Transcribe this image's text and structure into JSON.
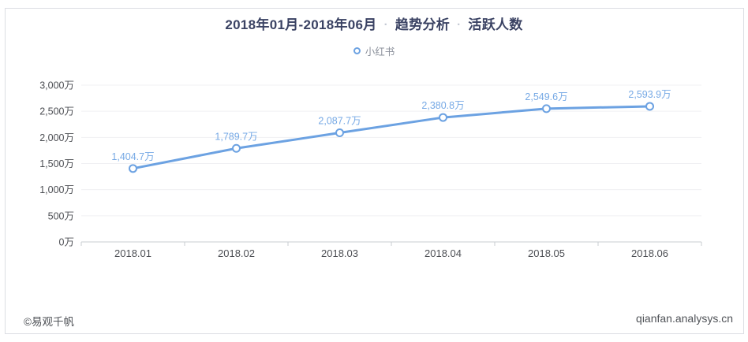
{
  "page": {
    "title": {
      "segments": [
        "2018年01月-2018年06月",
        "趋势分析",
        "活跃人数"
      ],
      "separator": "·"
    },
    "legend": {
      "label": "小红书"
    },
    "footer": {
      "left": "©易观千帆",
      "right": "qianfan.analysys.cn"
    }
  },
  "chart_data": {
    "type": "line",
    "title": "2018年01月-2018年06月 · 趋势分析 · 活跃人数",
    "series": [
      {
        "name": "小红书",
        "values": [
          1404.7,
          1789.7,
          2087.7,
          2380.8,
          2549.6,
          2593.9
        ],
        "point_labels": [
          "1,404.7万",
          "1,789.7万",
          "2,087.7万",
          "2,380.8万",
          "2,549.6万",
          "2,593.9万"
        ]
      }
    ],
    "categories": [
      "2018.01",
      "2018.02",
      "2018.03",
      "2018.04",
      "2018.05",
      "2018.06"
    ],
    "xlabel": "",
    "ylabel": "",
    "ylim": [
      0,
      3000
    ],
    "y_ticks": [
      {
        "value": 0,
        "label": "0万"
      },
      {
        "value": 500,
        "label": "500万"
      },
      {
        "value": 1000,
        "label": "1,000万"
      },
      {
        "value": 1500,
        "label": "1,500万"
      },
      {
        "value": 2000,
        "label": "2,000万"
      },
      {
        "value": 2500,
        "label": "2,500万"
      },
      {
        "value": 3000,
        "label": "3,000万"
      }
    ],
    "grid": true,
    "legend_position": "top",
    "style": {
      "line_color": "#6ca2e2",
      "marker_fill": "#ffffff",
      "point_label_color": "#76a9e5",
      "grid_color": "#f0f0f3",
      "axis_color": "#c9ccd1",
      "axis_text_color": "#4d4f54",
      "title_color": "#3a4263"
    }
  }
}
